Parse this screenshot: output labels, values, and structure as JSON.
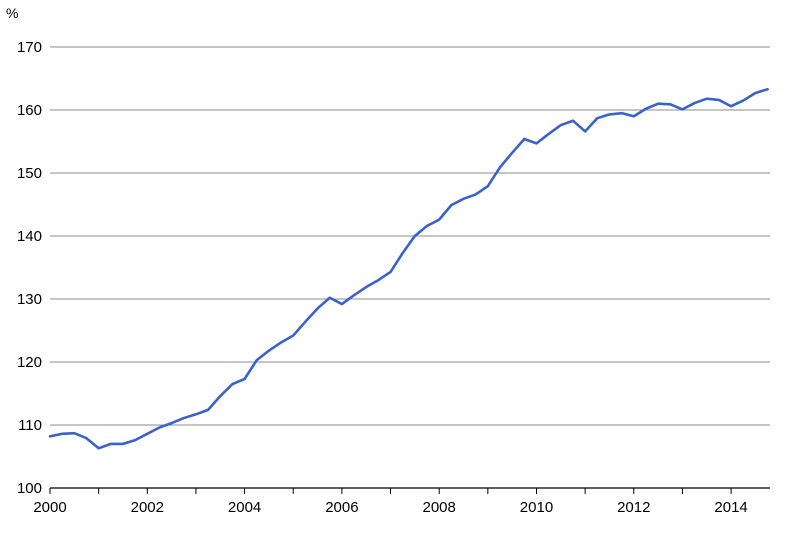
{
  "chart_data": {
    "type": "line",
    "title": "",
    "xlabel": "",
    "ylabel": "%",
    "xlim": [
      2000,
      2014.8
    ],
    "ylim": [
      100,
      170
    ],
    "x_ticks": [
      2000,
      2002,
      2004,
      2006,
      2008,
      2010,
      2012,
      2014
    ],
    "x_tick_labels": [
      "2000",
      "2002",
      "2004",
      "2006",
      "2008",
      "2010",
      "2012",
      "2014"
    ],
    "y_ticks": [
      100,
      110,
      120,
      130,
      140,
      150,
      160,
      170
    ],
    "y_tick_labels": [
      "100",
      "110",
      "120",
      "130",
      "140",
      "150",
      "160",
      "170"
    ],
    "grid": "horizontal",
    "legend": "none",
    "colors": {
      "line": "#3a62c8",
      "grid": "#8c8c8c",
      "axis": "#000000"
    },
    "series": [
      {
        "x": [
          2000.0,
          2000.25,
          2000.5,
          2000.75,
          2001.0,
          2001.25,
          2001.5,
          2001.75,
          2002.0,
          2002.25,
          2002.5,
          2002.75,
          2003.0,
          2003.25,
          2003.5,
          2003.75,
          2004.0,
          2004.25,
          2004.5,
          2004.75,
          2005.0,
          2005.25,
          2005.5,
          2005.75,
          2006.0,
          2006.25,
          2006.5,
          2006.75,
          2007.0,
          2007.25,
          2007.5,
          2007.75,
          2008.0,
          2008.25,
          2008.5,
          2008.75,
          2009.0,
          2009.25,
          2009.5,
          2009.75,
          2010.0,
          2010.25,
          2010.5,
          2010.75,
          2011.0,
          2011.25,
          2011.5,
          2011.75,
          2012.0,
          2012.25,
          2012.5,
          2012.75,
          2013.0,
          2013.25,
          2013.5,
          2013.75,
          2014.0,
          2014.25,
          2014.5,
          2014.75
        ],
        "values": [
          108.2,
          108.6,
          108.7,
          107.9,
          106.3,
          107.0,
          107.0,
          107.6,
          108.6,
          109.6,
          110.3,
          111.1,
          111.7,
          112.4,
          114.6,
          116.5,
          117.3,
          120.3,
          121.8,
          123.1,
          124.2,
          126.4,
          128.5,
          130.2,
          129.2,
          130.6,
          131.9,
          133.0,
          134.3,
          137.3,
          140.0,
          141.6,
          142.6,
          144.9,
          145.9,
          146.6,
          147.9,
          150.9,
          153.2,
          155.4,
          154.7,
          156.2,
          157.6,
          158.3,
          156.6,
          158.7,
          159.3,
          159.5,
          159.0,
          160.2,
          161.0,
          160.9,
          160.1,
          161.1,
          161.8,
          161.6,
          160.6,
          161.5,
          162.7,
          163.3
        ]
      }
    ]
  }
}
